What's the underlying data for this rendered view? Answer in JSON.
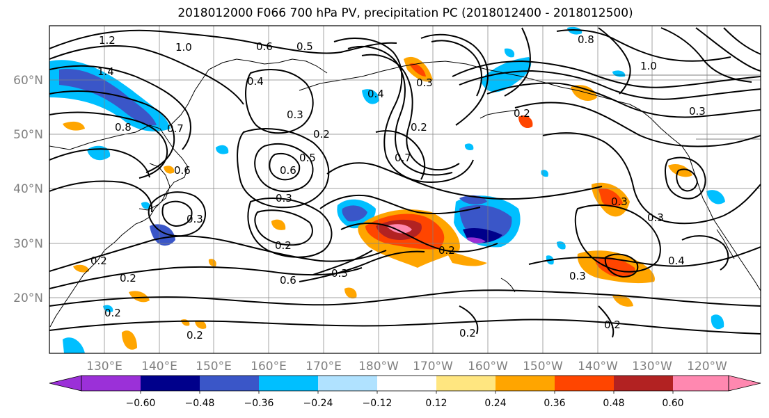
{
  "title": "2018012000 F066 700 hPa PV, precipitation PC (2018012400 - 2018012500)",
  "lat_labels": [
    "60°N",
    "50°N",
    "40°N",
    "30°N",
    "20°N"
  ],
  "lon_labels": [
    "130°E",
    "140°E",
    "150°E",
    "160°E",
    "170°E",
    "180°W",
    "170°W",
    "160°W",
    "150°W",
    "140°W",
    "130°W",
    "120°W"
  ],
  "contour_labels": [
    "1.2",
    "1.0",
    "1.4",
    "0.6",
    "0.5",
    "0.8",
    "0.7",
    "0.4",
    "0.3",
    "0.2",
    "0.6",
    "0.5",
    "0.3",
    "0.2",
    "0.6",
    "0.7",
    "0.4",
    "0.3",
    "0.2",
    "0.3",
    "0.2",
    "0.6",
    "0.3",
    "0.2",
    "0.2",
    "0.2",
    "0.2",
    "0.2",
    "0.3",
    "0.4",
    "0.3",
    "0.3",
    "0.2",
    "1.0",
    "0.3",
    "0.2",
    "0.8"
  ],
  "colorbar": {
    "ticks": [
      "−0.60",
      "−0.48",
      "−0.36",
      "−0.24",
      "−0.12",
      "0.12",
      "0.24",
      "0.36",
      "0.48",
      "0.60"
    ],
    "colors": [
      "#9b30d8",
      "#00008b",
      "#3a56c8",
      "#00bfff",
      "#b0e2ff",
      "#ffffff",
      "#ffe680",
      "#ffa500",
      "#ff4500",
      "#b22222",
      "#ff88b0",
      "#ff88b0"
    ]
  }
}
